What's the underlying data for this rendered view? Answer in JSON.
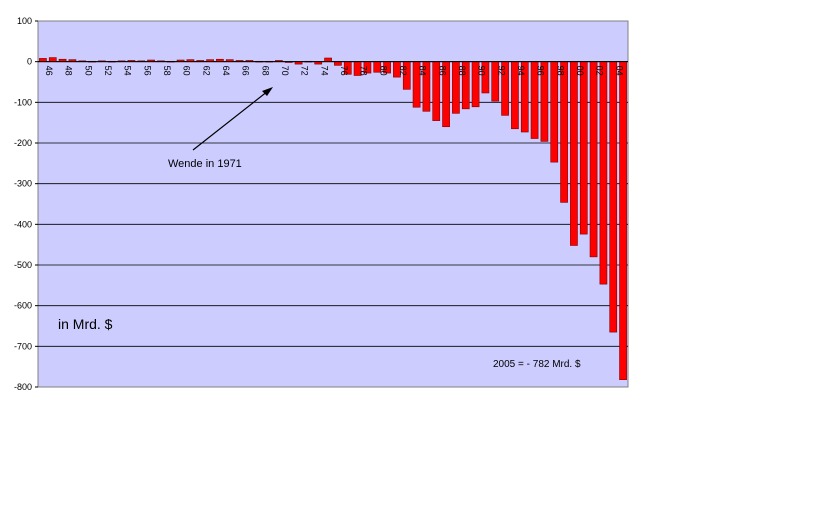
{
  "chart_data": {
    "type": "bar",
    "title": "",
    "xlabel": "",
    "ylabel": "",
    "ylim": [
      -800,
      100
    ],
    "yticks": [
      100,
      0,
      -100,
      -200,
      -300,
      -400,
      -500,
      -600,
      -700,
      -800
    ],
    "grid": true,
    "background_color": "#ccccff",
    "bar_color": "#ff0000",
    "bar_edge_color": "#800000",
    "categories": [
      "46",
      "47",
      "48",
      "49",
      "50",
      "51",
      "52",
      "53",
      "54",
      "55",
      "56",
      "57",
      "58",
      "59",
      "60",
      "61",
      "62",
      "63",
      "64",
      "65",
      "66",
      "67",
      "68",
      "69",
      "70",
      "71",
      "72",
      "73",
      "74",
      "75",
      "76",
      "77",
      "78",
      "79",
      "80",
      "81",
      "82",
      "83",
      "84",
      "85",
      "86",
      "87",
      "88",
      "89",
      "90",
      "91",
      "92",
      "93",
      "94",
      "95",
      "96",
      "97",
      "98",
      "99",
      "00",
      "01",
      "02",
      "03",
      "04",
      "05"
    ],
    "x_tick_labels": [
      "46",
      "48",
      "50",
      "52",
      "54",
      "56",
      "58",
      "60",
      "62",
      "64",
      "66",
      "68",
      "70",
      "72",
      "74",
      "76",
      "78",
      "80",
      "82",
      "84",
      "86",
      "88",
      "90",
      "92",
      "94",
      "96",
      "98",
      "00",
      "02",
      "04"
    ],
    "values": [
      8,
      10,
      6,
      5,
      2,
      1,
      2,
      1,
      2,
      3,
      2,
      4,
      2,
      1,
      4,
      5,
      3,
      5,
      6,
      5,
      3,
      3,
      1,
      1,
      3,
      -2,
      -6,
      1,
      -6,
      9,
      -9,
      -31,
      -34,
      -28,
      -26,
      -28,
      -38,
      -68,
      -112,
      -122,
      -145,
      -160,
      -127,
      -116,
      -111,
      -77,
      -97,
      -132,
      -165,
      -173,
      -189,
      -196,
      -247,
      -346,
      -452,
      -424,
      -480,
      -547,
      -665,
      -782
    ]
  },
  "annotations": {
    "arrow_label": "Wende in 1971",
    "unit_label": "in Mrd. $",
    "note_2005": "2005 =   - 782 Mrd. $"
  }
}
